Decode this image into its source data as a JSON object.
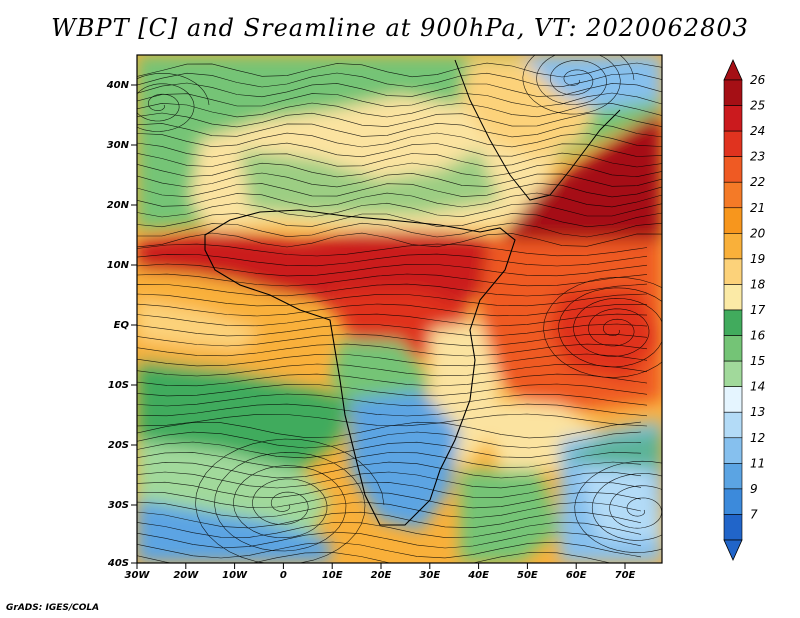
{
  "title": "WBPT [C] and Sreamline at 900hPa, VT: 2020062803",
  "credit": "GrADS: IGES/COLA",
  "lat_labels": [
    "40N",
    "30N",
    "20N",
    "10N",
    "EQ",
    "10S",
    "20S",
    "30S",
    "40S"
  ],
  "lon_labels": [
    "30W",
    "20W",
    "10W",
    "0",
    "10E",
    "20E",
    "30E",
    "40E",
    "50E",
    "60E",
    "70E"
  ],
  "colorbar": {
    "labels": [
      "26",
      "25",
      "24",
      "23",
      "22",
      "21",
      "20",
      "19",
      "18",
      "17",
      "16",
      "15",
      "14",
      "13",
      "12",
      "11",
      "9",
      "7"
    ],
    "colors": [
      "#a50f15",
      "#cb1a1e",
      "#e0331f",
      "#ef5a23",
      "#f47a27",
      "#f7961d",
      "#f9b03a",
      "#fcd27a",
      "#fbeaa6",
      "#41ab5d",
      "#74c476",
      "#a1d99b",
      "#e5f5ff",
      "#b3dbf7",
      "#86c0ee",
      "#5ba4e3",
      "#3c8adb",
      "#2165c9"
    ]
  },
  "map": {
    "regions": [
      {
        "name": "north-africa-green",
        "color": "#74c476"
      },
      {
        "name": "sahara-tan",
        "color": "#fbe3a0"
      },
      {
        "name": "sahel-red",
        "color": "#cb1a1e"
      },
      {
        "name": "arabia-red",
        "color": "#d8301f"
      },
      {
        "name": "indian-ocean-orange",
        "color": "#ef5a23"
      },
      {
        "name": "atlantic-orange",
        "color": "#f7961d"
      },
      {
        "name": "south-atlantic-green",
        "color": "#41ab5d"
      },
      {
        "name": "south-africa-blue",
        "color": "#5ba4e3"
      }
    ]
  }
}
